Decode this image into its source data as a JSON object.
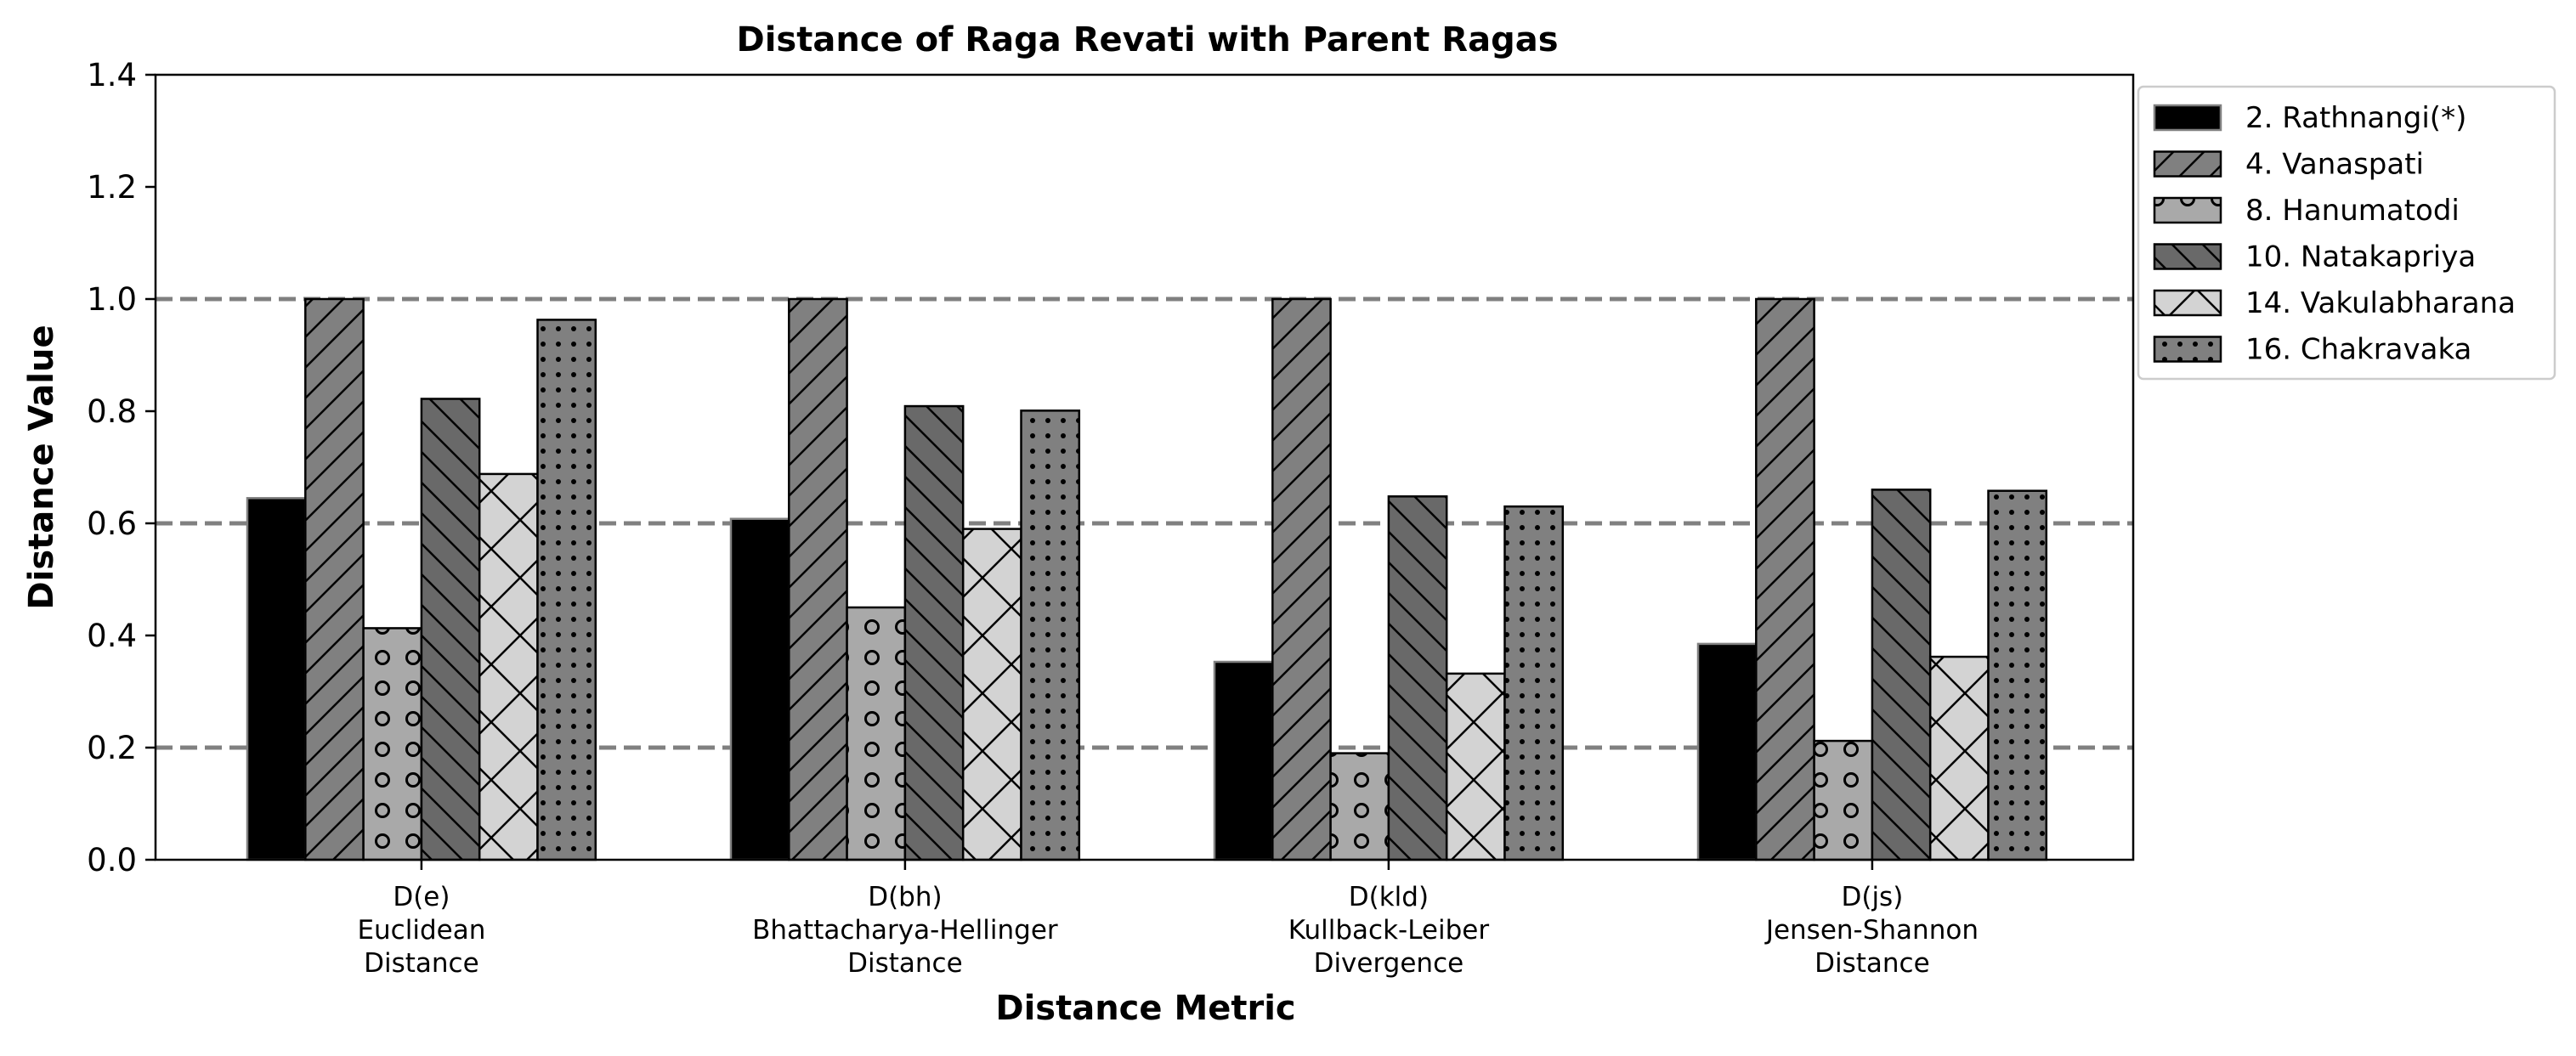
{
  "chart_data": {
    "type": "bar",
    "title": "Distance of Raga Revati with Parent Ragas",
    "xlabel": "Distance Metric",
    "ylabel": "Distance Value",
    "ylim": [
      0,
      1.4
    ],
    "yticks": [
      "0.0",
      "0.2",
      "0.4",
      "0.6",
      "0.8",
      "1.0",
      "1.2",
      "1.4"
    ],
    "reference_lines": [
      0.2,
      0.6,
      1.0
    ],
    "categories": [
      [
        "D(e)",
        "Euclidean",
        "Distance"
      ],
      [
        "D(bh)",
        "Bhattacharya-Hellinger",
        "Distance"
      ],
      [
        "D(kld)",
        "Kullback-Leiber",
        "Divergence"
      ],
      [
        "D(js)",
        "Jensen-Shannon",
        "Distance"
      ]
    ],
    "series": [
      {
        "name": "2. Rathnangi(*)",
        "values": [
          0.645,
          0.608,
          0.353,
          0.385
        ],
        "color": "#000000",
        "pattern": "none"
      },
      {
        "name": "4. Vanaspati",
        "values": [
          1.0,
          1.0,
          1.0,
          1.0
        ],
        "color": "#808080",
        "pattern": "forward-diagonal"
      },
      {
        "name": "8. Hanumatodi",
        "values": [
          0.413,
          0.45,
          0.19,
          0.212
        ],
        "color": "#a9a9a9",
        "pattern": "circles"
      },
      {
        "name": "10. Natakapriya",
        "values": [
          0.822,
          0.809,
          0.648,
          0.66
        ],
        "color": "#696969",
        "pattern": "back-diagonal"
      },
      {
        "name": "14. Vakulabharana",
        "values": [
          0.688,
          0.59,
          0.332,
          0.362
        ],
        "color": "#d3d3d3",
        "pattern": "cross"
      },
      {
        "name": "16. Chakravaka",
        "values": [
          0.963,
          0.801,
          0.63,
          0.658
        ],
        "color": "#808080",
        "pattern": "dots"
      }
    ],
    "grid": false,
    "legend_position": "outside-top-right"
  }
}
